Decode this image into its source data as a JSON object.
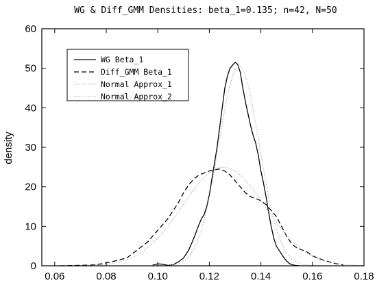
{
  "chart_data": {
    "type": "line",
    "title": "WG & Diff_GMM Densities: beta_1=0.135; n=42, N=50",
    "xlabel": "",
    "ylabel": "density",
    "xlim": [
      0.055,
      0.18
    ],
    "ylim": [
      0,
      60
    ],
    "x_ticks": [
      0.06,
      0.08,
      0.1,
      0.12,
      0.14,
      0.16,
      0.18
    ],
    "x_tick_labels": [
      "0.06",
      "0.08",
      "0.10",
      "0.12",
      "0.14",
      "0.16",
      "0.18"
    ],
    "y_ticks": [
      0,
      10,
      20,
      30,
      40,
      50,
      60
    ],
    "y_tick_labels": [
      "0",
      "10",
      "20",
      "30",
      "40",
      "50",
      "60"
    ],
    "grid": false,
    "legend_position": "top-left",
    "series": [
      {
        "name": "WG Beta_1",
        "style": "solid",
        "color": "#000000",
        "x": [
          0.098,
          0.1,
          0.102,
          0.104,
          0.106,
          0.108,
          0.11,
          0.112,
          0.114,
          0.116,
          0.117,
          0.118,
          0.119,
          0.12,
          0.121,
          0.122,
          0.123,
          0.124,
          0.125,
          0.126,
          0.127,
          0.128,
          0.129,
          0.13,
          0.131,
          0.132,
          0.133,
          0.134,
          0.135,
          0.136,
          0.137,
          0.138,
          0.139,
          0.14,
          0.141,
          0.142,
          0.143,
          0.144,
          0.145,
          0.146,
          0.147,
          0.148,
          0.149,
          0.15,
          0.151,
          0.152,
          0.153,
          0.154,
          0.155
        ],
        "y": [
          0.2,
          0.5,
          0.4,
          0.1,
          0.3,
          1.0,
          2.0,
          4.0,
          7.0,
          10.5,
          12.0,
          13.0,
          15.0,
          18.0,
          22.0,
          26.0,
          30.0,
          35.0,
          40.0,
          45.0,
          48.0,
          50.0,
          50.8,
          51.5,
          51.0,
          49.0,
          45.0,
          41.5,
          38.5,
          35.5,
          33.0,
          31.0,
          28.0,
          24.0,
          21.0,
          17.5,
          13.5,
          10.0,
          7.0,
          5.0,
          4.0,
          3.0,
          2.0,
          1.2,
          0.6,
          0.3,
          0.15,
          0.05,
          0.0
        ]
      },
      {
        "name": "Diff_GMM Beta_1",
        "style": "dashed",
        "color": "#000000",
        "x": [
          0.062,
          0.066,
          0.07,
          0.074,
          0.078,
          0.082,
          0.085,
          0.088,
          0.09,
          0.092,
          0.094,
          0.096,
          0.098,
          0.1,
          0.102,
          0.104,
          0.106,
          0.108,
          0.11,
          0.112,
          0.114,
          0.116,
          0.118,
          0.12,
          0.122,
          0.124,
          0.126,
          0.128,
          0.13,
          0.132,
          0.134,
          0.136,
          0.138,
          0.14,
          0.142,
          0.144,
          0.146,
          0.148,
          0.15,
          0.152,
          0.154,
          0.156,
          0.158,
          0.16,
          0.164,
          0.168,
          0.172
        ],
        "y": [
          0.0,
          0.05,
          0.1,
          0.2,
          0.5,
          1.0,
          1.5,
          2.0,
          3.0,
          4.0,
          5.0,
          6.0,
          7.5,
          9.0,
          10.5,
          12.0,
          14.0,
          16.0,
          18.5,
          20.5,
          22.0,
          23.0,
          23.5,
          24.0,
          24.3,
          24.5,
          24.0,
          23.0,
          21.5,
          20.0,
          18.5,
          17.5,
          17.0,
          16.5,
          15.5,
          14.0,
          12.5,
          10.0,
          7.5,
          5.5,
          4.5,
          4.0,
          3.5,
          2.5,
          1.5,
          0.7,
          0.2
        ]
      },
      {
        "name": "Normal Approx_1",
        "style": "dotted",
        "color": "#999999",
        "mean": 0.1315,
        "sd": 0.0079
      },
      {
        "name": "Normal Approx_2",
        "style": "dotted",
        "color": "#999999",
        "mean": 0.1255,
        "sd": 0.016
      }
    ]
  }
}
